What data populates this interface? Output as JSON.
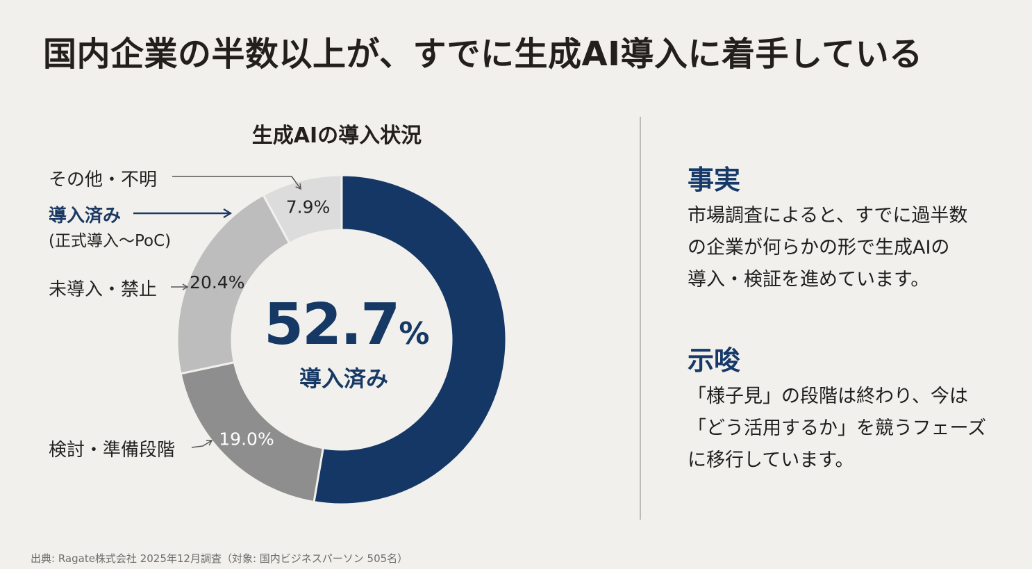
{
  "title": "国内企業の半数以上が、すでに生成AI導入に着手している",
  "chart_data": {
    "type": "pie",
    "subtype": "donut",
    "title": "生成AIの導入状況",
    "categories": [
      "導入済み",
      "検討・準備段階",
      "未導入・禁止",
      "その他・不明"
    ],
    "values": [
      52.7,
      19.0,
      20.4,
      7.9
    ],
    "value_labels": [
      "52.7%",
      "19.0%",
      "20.4%",
      "7.9%"
    ],
    "colors": [
      "#153765",
      "#8e8e8e",
      "#bdbdbd",
      "#dcdcdc"
    ],
    "unit": "%",
    "start_angle": "top, clockwise",
    "center": {
      "value": "52.7",
      "symbol": "%",
      "label": "導入済み"
    },
    "labels": {
      "other": "その他・不明",
      "adopted": "導入済み",
      "adopted_sub": "(正式導入〜PoC)",
      "not_adopted": "未導入・禁止",
      "considering": "検討・準備段階"
    }
  },
  "fact": {
    "heading": "事実",
    "lines": [
      "市場調査によると、すでに過半数",
      "の企業が何らかの形で生成AIの",
      "導入・検証を進めています。"
    ]
  },
  "implication": {
    "heading": "示唆",
    "lines": [
      "「様子見」の段階は終わり、今は",
      "「どう活用するか」を競うフェーズ",
      "に移行しています。"
    ]
  },
  "source": "出典: Ragate株式会社 2025年12月調査（対象: 国内ビジネスパーソン 505名）"
}
